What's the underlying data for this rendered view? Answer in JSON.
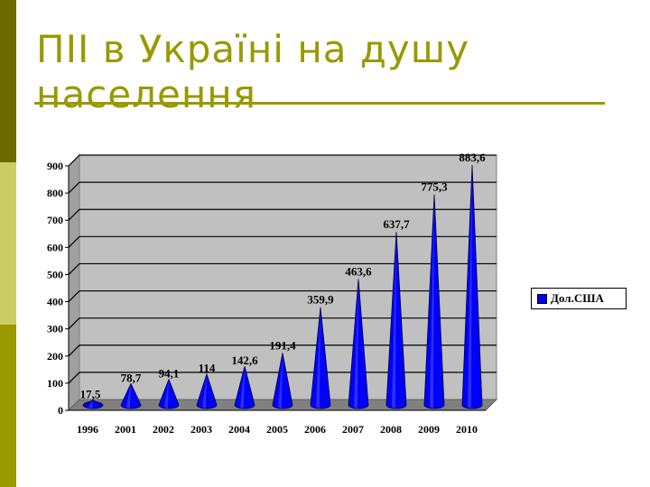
{
  "slide": {
    "title": "ПІІ в Україні на душу населення"
  },
  "colors": {
    "accent": "#999900",
    "bar": "#0000ff",
    "plot_bg": "#c0c0c0"
  },
  "chart_data": {
    "type": "bar",
    "categories": [
      "1996",
      "2001",
      "2002",
      "2003",
      "2004",
      "2005",
      "2006",
      "2007",
      "2008",
      "2009",
      "2010"
    ],
    "series": [
      {
        "name": "Дол.США",
        "values": [
          17.5,
          78.7,
          94.1,
          114,
          142.6,
          191.4,
          359.9,
          463.6,
          637.7,
          775.3,
          883.6
        ]
      }
    ],
    "data_labels": [
      "17,5",
      "78,7",
      "94,1",
      "114",
      "142,6",
      "191,4",
      "359,9",
      "463,6",
      "637,7",
      "775,3",
      "883,6"
    ],
    "y_ticks": [
      "0",
      "100",
      "200",
      "300",
      "400",
      "500",
      "600",
      "700",
      "800",
      "900"
    ],
    "ylim": [
      0,
      900
    ],
    "grid": true,
    "legend_position": "right",
    "bar_shape": "cone-3d"
  }
}
